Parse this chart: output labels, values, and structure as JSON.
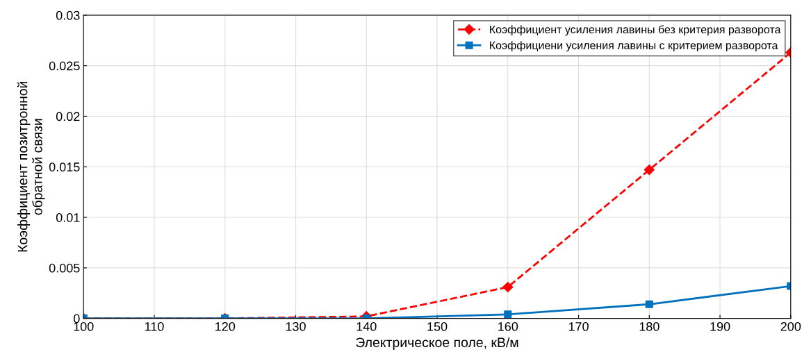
{
  "chart_data": {
    "type": "line",
    "xlabel": "Электрическое поле, кВ/м",
    "ylabel": "Коэффициент позитронной\nобратной связи",
    "x": [
      100,
      120,
      140,
      160,
      180,
      200
    ],
    "series": [
      {
        "name": "Коэффициент усиления лавины без критерия разворота",
        "color": "#ff0000",
        "marker": "diamond",
        "line_style": "dashed",
        "values": [
          0,
          0,
          0.0002,
          0.0031,
          0.0147,
          0.0263
        ]
      },
      {
        "name": "Коэффициени усиления лавины с критерием разворота",
        "color": "#0072bd",
        "marker": "square",
        "line_style": "solid",
        "values": [
          0,
          0,
          0,
          0.0004,
          0.0014,
          0.0032
        ]
      }
    ],
    "xlim": [
      100,
      200
    ],
    "xticks": [
      100,
      110,
      120,
      130,
      140,
      150,
      160,
      170,
      180,
      190,
      200
    ],
    "ylim": [
      0,
      0.03
    ],
    "yticks": [
      0,
      0.005,
      0.01,
      0.015,
      0.02,
      0.025,
      0.03
    ],
    "grid": true,
    "legend": "top right"
  }
}
